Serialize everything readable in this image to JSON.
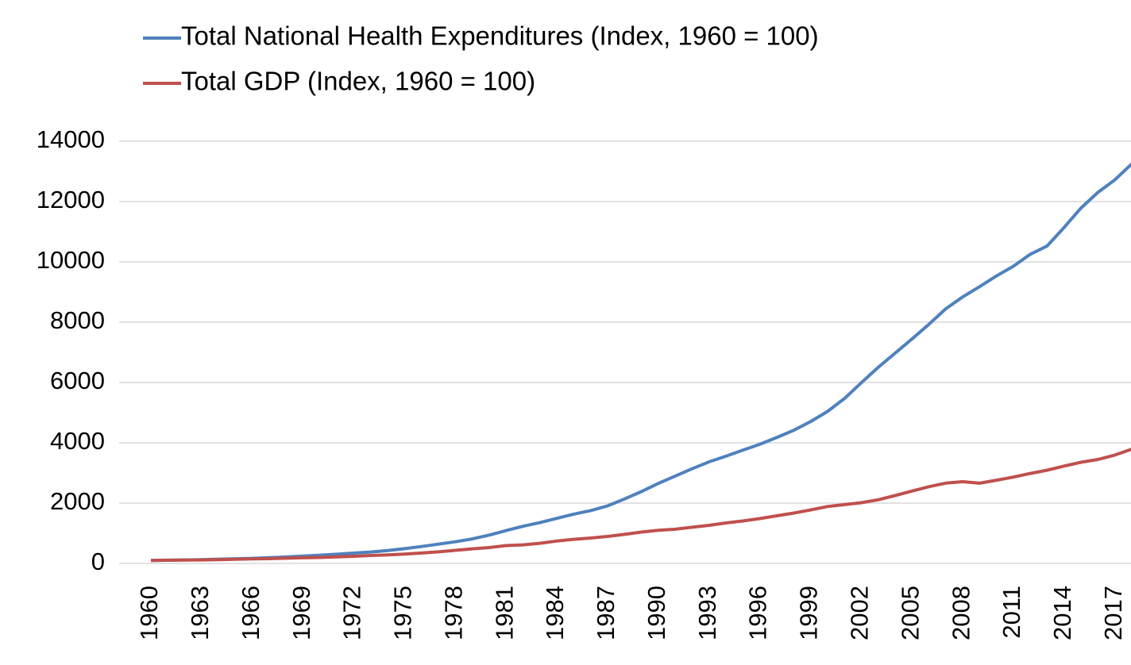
{
  "chart_data": {
    "type": "line",
    "x": [
      1960,
      1961,
      1962,
      1963,
      1964,
      1965,
      1966,
      1967,
      1968,
      1969,
      1970,
      1971,
      1972,
      1973,
      1974,
      1975,
      1976,
      1977,
      1978,
      1979,
      1980,
      1981,
      1982,
      1983,
      1984,
      1985,
      1986,
      1987,
      1988,
      1989,
      1990,
      1991,
      1992,
      1993,
      1994,
      1995,
      1996,
      1997,
      1998,
      1999,
      2000,
      2001,
      2002,
      2003,
      2004,
      2005,
      2006,
      2007,
      2008,
      2009,
      2010,
      2011,
      2012,
      2013,
      2014,
      2015,
      2016,
      2017,
      2018
    ],
    "series": [
      {
        "name": "Total National Health Expenditures (Index, 1960 = 100)",
        "color": "#4f81bd",
        "values": [
          100,
          107,
          117,
          127,
          141,
          154,
          169,
          190,
          214,
          242,
          274,
          304,
          341,
          378,
          428,
          490,
          561,
          639,
          718,
          814,
          939,
          1089,
          1231,
          1353,
          1494,
          1635,
          1753,
          1908,
          2136,
          2381,
          2652,
          2897,
          3140,
          3369,
          3556,
          3756,
          3950,
          4175,
          4412,
          4700,
          5036,
          5463,
          5989,
          6501,
          6971,
          7442,
          7930,
          8444,
          8838,
          9178,
          9534,
          9855,
          10253,
          10529,
          11143,
          11787,
          12305,
          12722,
          13252
        ]
      },
      {
        "name": "Total GDP (Index, 1960 = 100)",
        "color": "#c0504d",
        "values": [
          100,
          104,
          111,
          117,
          126,
          137,
          150,
          159,
          173,
          188,
          198,
          215,
          236,
          262,
          285,
          310,
          345,
          383,
          433,
          484,
          526,
          591,
          616,
          669,
          743,
          799,
          843,
          894,
          964,
          1039,
          1098,
          1134,
          1201,
          1263,
          1342,
          1407,
          1487,
          1580,
          1669,
          1774,
          1888,
          1949,
          2014,
          2110,
          2249,
          2401,
          2544,
          2662,
          2710,
          2661,
          2761,
          2862,
          2983,
          3091,
          3228,
          3356,
          3447,
          3595,
          3790
        ]
      }
    ],
    "xlim": [
      1960,
      2018
    ],
    "xticks": [
      1960,
      1963,
      1966,
      1969,
      1972,
      1975,
      1978,
      1981,
      1984,
      1987,
      1990,
      1993,
      1996,
      1999,
      2002,
      2005,
      2008,
      2011,
      2014,
      2017
    ],
    "ylim": [
      0,
      14000
    ],
    "yticks": [
      0,
      2000,
      4000,
      6000,
      8000,
      10000,
      12000,
      14000
    ],
    "grid": true,
    "legend": "top"
  }
}
